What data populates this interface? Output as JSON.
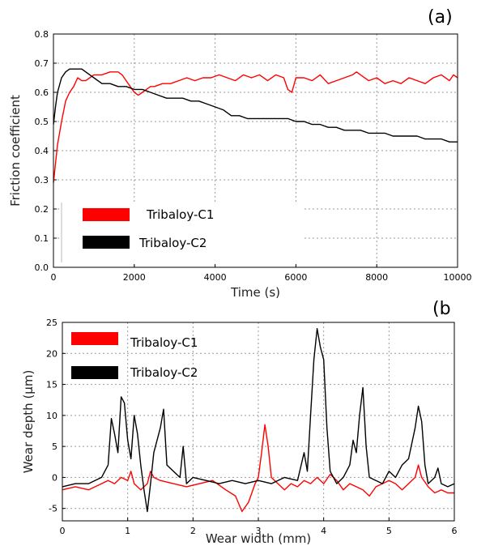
{
  "chart_data": [
    {
      "type": "line",
      "panel_label": "(a)",
      "xlabel": "Time (s)",
      "ylabel": "Friction coefficient",
      "xlim": [
        0,
        10000
      ],
      "ylim": [
        0.0,
        0.8
      ],
      "x_ticks": [
        "0",
        "2000",
        "4000",
        "6000",
        "8000",
        "10000"
      ],
      "y_ticks": [
        "0.0",
        "0.1",
        "0.2",
        "0.3",
        "0.4",
        "0.5",
        "0.6",
        "0.7",
        "0.8"
      ],
      "grid": true,
      "legend_position": "bottom-left",
      "series": [
        {
          "name": "Tribaloy-C1",
          "color": "#ff0000",
          "points": [
            [
              0,
              0.29
            ],
            [
              100,
              0.42
            ],
            [
              200,
              0.5
            ],
            [
              300,
              0.57
            ],
            [
              400,
              0.6
            ],
            [
              500,
              0.62
            ],
            [
              600,
              0.65
            ],
            [
              700,
              0.64
            ],
            [
              800,
              0.64
            ],
            [
              900,
              0.65
            ],
            [
              1000,
              0.66
            ],
            [
              1200,
              0.66
            ],
            [
              1400,
              0.67
            ],
            [
              1600,
              0.67
            ],
            [
              1700,
              0.66
            ],
            [
              1800,
              0.64
            ],
            [
              1900,
              0.62
            ],
            [
              2000,
              0.6
            ],
            [
              2100,
              0.59
            ],
            [
              2200,
              0.6
            ],
            [
              2300,
              0.61
            ],
            [
              2400,
              0.62
            ],
            [
              2500,
              0.62
            ],
            [
              2700,
              0.63
            ],
            [
              2900,
              0.63
            ],
            [
              3100,
              0.64
            ],
            [
              3300,
              0.65
            ],
            [
              3500,
              0.64
            ],
            [
              3700,
              0.65
            ],
            [
              3900,
              0.65
            ],
            [
              4100,
              0.66
            ],
            [
              4300,
              0.65
            ],
            [
              4500,
              0.64
            ],
            [
              4700,
              0.66
            ],
            [
              4900,
              0.65
            ],
            [
              5100,
              0.66
            ],
            [
              5300,
              0.64
            ],
            [
              5500,
              0.66
            ],
            [
              5700,
              0.65
            ],
            [
              5800,
              0.61
            ],
            [
              5900,
              0.6
            ],
            [
              6000,
              0.65
            ],
            [
              6200,
              0.65
            ],
            [
              6400,
              0.64
            ],
            [
              6600,
              0.66
            ],
            [
              6800,
              0.63
            ],
            [
              7000,
              0.64
            ],
            [
              7200,
              0.65
            ],
            [
              7400,
              0.66
            ],
            [
              7500,
              0.67
            ],
            [
              7600,
              0.66
            ],
            [
              7800,
              0.64
            ],
            [
              8000,
              0.65
            ],
            [
              8200,
              0.63
            ],
            [
              8400,
              0.64
            ],
            [
              8600,
              0.63
            ],
            [
              8800,
              0.65
            ],
            [
              9000,
              0.64
            ],
            [
              9200,
              0.63
            ],
            [
              9400,
              0.65
            ],
            [
              9600,
              0.66
            ],
            [
              9800,
              0.64
            ],
            [
              9900,
              0.66
            ],
            [
              10000,
              0.65
            ]
          ]
        },
        {
          "name": "Tribaloy-C2",
          "color": "#000000",
          "points": [
            [
              0,
              0.49
            ],
            [
              50,
              0.55
            ],
            [
              100,
              0.6
            ],
            [
              200,
              0.65
            ],
            [
              300,
              0.67
            ],
            [
              400,
              0.68
            ],
            [
              500,
              0.68
            ],
            [
              600,
              0.68
            ],
            [
              700,
              0.68
            ],
            [
              800,
              0.67
            ],
            [
              900,
              0.66
            ],
            [
              1000,
              0.65
            ],
            [
              1200,
              0.63
            ],
            [
              1400,
              0.63
            ],
            [
              1600,
              0.62
            ],
            [
              1800,
              0.62
            ],
            [
              2000,
              0.61
            ],
            [
              2200,
              0.61
            ],
            [
              2400,
              0.6
            ],
            [
              2600,
              0.59
            ],
            [
              2800,
              0.58
            ],
            [
              3000,
              0.58
            ],
            [
              3200,
              0.58
            ],
            [
              3400,
              0.57
            ],
            [
              3600,
              0.57
            ],
            [
              3800,
              0.56
            ],
            [
              4000,
              0.55
            ],
            [
              4200,
              0.54
            ],
            [
              4400,
              0.52
            ],
            [
              4600,
              0.52
            ],
            [
              4800,
              0.51
            ],
            [
              5000,
              0.51
            ],
            [
              5200,
              0.51
            ],
            [
              5400,
              0.51
            ],
            [
              5600,
              0.51
            ],
            [
              5800,
              0.51
            ],
            [
              6000,
              0.5
            ],
            [
              6200,
              0.5
            ],
            [
              6400,
              0.49
            ],
            [
              6600,
              0.49
            ],
            [
              6800,
              0.48
            ],
            [
              7000,
              0.48
            ],
            [
              7200,
              0.47
            ],
            [
              7400,
              0.47
            ],
            [
              7600,
              0.47
            ],
            [
              7800,
              0.46
            ],
            [
              8000,
              0.46
            ],
            [
              8200,
              0.46
            ],
            [
              8400,
              0.45
            ],
            [
              8600,
              0.45
            ],
            [
              8800,
              0.45
            ],
            [
              9000,
              0.45
            ],
            [
              9200,
              0.44
            ],
            [
              9400,
              0.44
            ],
            [
              9600,
              0.44
            ],
            [
              9800,
              0.43
            ],
            [
              10000,
              0.43
            ]
          ]
        }
      ]
    },
    {
      "type": "line",
      "panel_label": "(b",
      "xlabel": "Wear width (mm)",
      "ylabel": "Wear depth (µm)",
      "xlim": [
        0,
        6
      ],
      "ylim": [
        -7,
        25
      ],
      "x_ticks": [
        "0",
        "1",
        "2",
        "3",
        "4",
        "5",
        "6"
      ],
      "y_ticks": [
        "25",
        "20",
        "15",
        "10",
        "5",
        "0",
        "-5"
      ],
      "grid": true,
      "legend_position": "top-left",
      "series": [
        {
          "name": "Tribaloy-C1",
          "color": "#ff0000",
          "points": [
            [
              0,
              -2
            ],
            [
              0.2,
              -1.5
            ],
            [
              0.4,
              -2
            ],
            [
              0.6,
              -1
            ],
            [
              0.7,
              -0.5
            ],
            [
              0.8,
              -1
            ],
            [
              0.9,
              0
            ],
            [
              1.0,
              -0.5
            ],
            [
              1.05,
              1
            ],
            [
              1.1,
              -1
            ],
            [
              1.2,
              -2
            ],
            [
              1.3,
              -1
            ],
            [
              1.35,
              1
            ],
            [
              1.4,
              0
            ],
            [
              1.5,
              -0.5
            ],
            [
              1.7,
              -1
            ],
            [
              1.9,
              -1.5
            ],
            [
              2.1,
              -1
            ],
            [
              2.3,
              -0.5
            ],
            [
              2.5,
              -2
            ],
            [
              2.65,
              -3
            ],
            [
              2.75,
              -5.5
            ],
            [
              2.85,
              -4
            ],
            [
              2.95,
              -1
            ],
            [
              3.0,
              0
            ],
            [
              3.05,
              4
            ],
            [
              3.1,
              8.5
            ],
            [
              3.15,
              5
            ],
            [
              3.2,
              0
            ],
            [
              3.3,
              -1
            ],
            [
              3.4,
              -2
            ],
            [
              3.5,
              -1
            ],
            [
              3.6,
              -1.5
            ],
            [
              3.7,
              -0.5
            ],
            [
              3.8,
              -1
            ],
            [
              3.9,
              0
            ],
            [
              4.0,
              -1
            ],
            [
              4.1,
              0.5
            ],
            [
              4.2,
              -0.5
            ],
            [
              4.3,
              -2
            ],
            [
              4.4,
              -1
            ],
            [
              4.5,
              -1.5
            ],
            [
              4.6,
              -2
            ],
            [
              4.7,
              -3
            ],
            [
              4.8,
              -1.5
            ],
            [
              4.9,
              -1
            ],
            [
              5.0,
              -0.5
            ],
            [
              5.1,
              -1
            ],
            [
              5.2,
              -2
            ],
            [
              5.3,
              -1
            ],
            [
              5.4,
              0
            ],
            [
              5.45,
              2
            ],
            [
              5.5,
              0
            ],
            [
              5.6,
              -1.5
            ],
            [
              5.7,
              -2.5
            ],
            [
              5.8,
              -2
            ],
            [
              5.9,
              -2.5
            ],
            [
              6.0,
              -2.5
            ]
          ]
        },
        {
          "name": "Tribaloy-C2",
          "color": "#000000",
          "points": [
            [
              0,
              -1.5
            ],
            [
              0.2,
              -1
            ],
            [
              0.4,
              -1
            ],
            [
              0.5,
              -0.5
            ],
            [
              0.6,
              0
            ],
            [
              0.7,
              2
            ],
            [
              0.75,
              9.5
            ],
            [
              0.8,
              7
            ],
            [
              0.85,
              4
            ],
            [
              0.9,
              13
            ],
            [
              0.95,
              12
            ],
            [
              1.0,
              6
            ],
            [
              1.05,
              3
            ],
            [
              1.1,
              10
            ],
            [
              1.15,
              7
            ],
            [
              1.2,
              2
            ],
            [
              1.25,
              -2
            ],
            [
              1.3,
              -5.5
            ],
            [
              1.35,
              -1
            ],
            [
              1.4,
              4
            ],
            [
              1.5,
              8
            ],
            [
              1.55,
              11
            ],
            [
              1.6,
              2
            ],
            [
              1.7,
              1
            ],
            [
              1.8,
              0
            ],
            [
              1.85,
              5
            ],
            [
              1.9,
              -1
            ],
            [
              2.0,
              0
            ],
            [
              2.2,
              -0.5
            ],
            [
              2.4,
              -1
            ],
            [
              2.6,
              -0.5
            ],
            [
              2.8,
              -1
            ],
            [
              3.0,
              -0.5
            ],
            [
              3.2,
              -1
            ],
            [
              3.4,
              0
            ],
            [
              3.6,
              -0.5
            ],
            [
              3.7,
              4
            ],
            [
              3.75,
              1
            ],
            [
              3.8,
              10
            ],
            [
              3.85,
              19
            ],
            [
              3.9,
              24
            ],
            [
              3.95,
              21
            ],
            [
              4.0,
              19
            ],
            [
              4.05,
              8
            ],
            [
              4.1,
              1
            ],
            [
              4.2,
              -1
            ],
            [
              4.3,
              0
            ],
            [
              4.4,
              2
            ],
            [
              4.45,
              6
            ],
            [
              4.5,
              4
            ],
            [
              4.55,
              10
            ],
            [
              4.6,
              14.5
            ],
            [
              4.65,
              5
            ],
            [
              4.7,
              0
            ],
            [
              4.8,
              -0.5
            ],
            [
              4.9,
              -1
            ],
            [
              5.0,
              1
            ],
            [
              5.1,
              0
            ],
            [
              5.2,
              2
            ],
            [
              5.3,
              3
            ],
            [
              5.4,
              8
            ],
            [
              5.45,
              11.5
            ],
            [
              5.5,
              9
            ],
            [
              5.55,
              2
            ],
            [
              5.6,
              -1
            ],
            [
              5.7,
              0
            ],
            [
              5.75,
              1.5
            ],
            [
              5.8,
              -1
            ],
            [
              5.9,
              -1.5
            ],
            [
              6.0,
              -1
            ]
          ]
        }
      ]
    }
  ]
}
